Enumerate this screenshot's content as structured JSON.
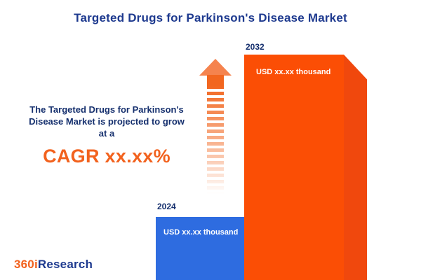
{
  "title": "Targeted Drugs for Parkinson's Disease Market",
  "annotation": {
    "line1": "The Targeted Drugs for Parkinson's",
    "line2": "Disease Market is projected to grow",
    "line3": "at a",
    "cagr": "CAGR xx.xx%"
  },
  "bars": [
    {
      "year": "2024",
      "value": "USD xx.xx thousand"
    },
    {
      "year": "2032",
      "value": "USD xx.xx thousand"
    }
  ],
  "logo": {
    "part1": "360i",
    "part2": "Research"
  },
  "colors": {
    "navy_text": "#1e3a8f",
    "accent_orange": "#f2621e",
    "bar_blue": "#2e6ce0",
    "bar_orange": "#fb4e05",
    "bar_orange_side": "#f0480d",
    "arrow_orange": "#f2661f"
  },
  "chart_data": {
    "type": "bar",
    "title": "Targeted Drugs for Parkinson's Disease Market",
    "categories": [
      "2024",
      "2032"
    ],
    "value_labels": [
      "USD xx.xx thousand",
      "USD xx.xx thousand"
    ],
    "values": [
      null,
      null
    ],
    "relative_heights": [
      0.28,
      1.0
    ],
    "series_colors": [
      "#2e6ce0",
      "#fb4e05"
    ],
    "xlabel": "",
    "ylabel": "",
    "legend": "none",
    "grid": false,
    "annotations": [
      "The Targeted Drugs for Parkinson's Disease Market is projected to grow at a CAGR xx.xx%"
    ],
    "note": "numeric values are masked as xx.xx in the source image"
  }
}
